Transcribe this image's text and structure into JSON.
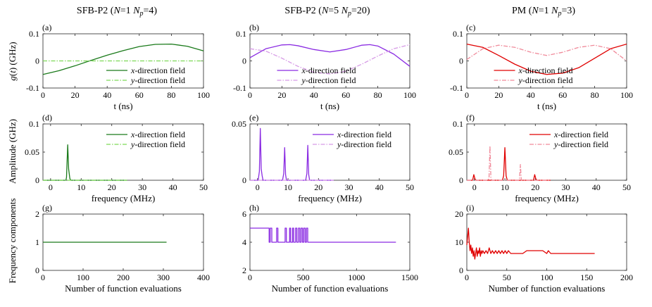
{
  "column_titles": [
    "SFB-P2 (N=1 Np=4)",
    "SFB-P2 (N=5 Np=20)",
    "PM (N=1 Np=3)"
  ],
  "chart_data": [
    {
      "panel": "a",
      "type": "line",
      "title": "SFB-P2 (N=1 Np=4)",
      "panel_label": "(a)",
      "xlabel": "t (ns)",
      "ylabel": "g(t) (GHz)",
      "xlim": [
        0,
        100
      ],
      "ylim": [
        -0.1,
        0.1
      ],
      "xticks": [
        "0",
        "20",
        "40",
        "60",
        "80",
        "100"
      ],
      "yticks": [
        "-0.1",
        "0",
        "0.1"
      ],
      "legend": "bottom-right",
      "series": [
        {
          "name": "x-direction field",
          "color": "#1a7a1a",
          "dash": "solid",
          "x": [
            0,
            10,
            20,
            30,
            40,
            50,
            60,
            70,
            80,
            90,
            100
          ],
          "y": [
            -0.05,
            -0.036,
            -0.018,
            0.002,
            0.021,
            0.038,
            0.053,
            0.061,
            0.062,
            0.054,
            0.037
          ]
        },
        {
          "name": "y-direction field",
          "color": "#7ed957",
          "dash": "dashdot",
          "x": [
            0,
            100
          ],
          "y": [
            0,
            0
          ]
        }
      ]
    },
    {
      "panel": "b",
      "type": "line",
      "panel_label": "(b)",
      "xlabel": "t (ns)",
      "xlim": [
        0,
        100
      ],
      "ylim": [
        -0.1,
        0.1
      ],
      "xticks": [
        "0",
        "20",
        "40",
        "60",
        "80",
        "100"
      ],
      "yticks": [
        "-0.1",
        "0",
        "0.1"
      ],
      "legend": "bottom-center",
      "series": [
        {
          "name": "x-direction field",
          "color": "#8a2be2",
          "dash": "solid",
          "x": [
            0,
            10,
            20,
            25,
            30,
            40,
            50,
            60,
            70,
            75,
            80,
            90,
            100
          ],
          "y": [
            0.012,
            0.045,
            0.059,
            0.06,
            0.056,
            0.042,
            0.033,
            0.042,
            0.058,
            0.06,
            0.055,
            0.025,
            -0.02
          ]
        },
        {
          "name": "y-direction field",
          "color": "#d69ae6",
          "dash": "dashdot",
          "x": [
            0,
            10,
            20,
            30,
            40,
            50,
            60,
            70,
            80,
            90,
            100
          ],
          "y": [
            0.045,
            0.036,
            0.01,
            -0.02,
            -0.042,
            -0.048,
            -0.038,
            -0.012,
            0.018,
            0.045,
            0.06
          ]
        }
      ]
    },
    {
      "panel": "c",
      "type": "line",
      "title": "PM (N=1 Np=3)",
      "panel_label": "(c)",
      "xlabel": "t (ns)",
      "xlim": [
        0,
        100
      ],
      "ylim": [
        -0.1,
        0.1
      ],
      "xticks": [
        "0",
        "20",
        "40",
        "60",
        "80",
        "100"
      ],
      "yticks": [
        "-0.1",
        "0",
        "0.1"
      ],
      "legend": "bottom-center",
      "series": [
        {
          "name": "x-direction field",
          "color": "#e00000",
          "dash": "solid",
          "x": [
            0,
            10,
            20,
            30,
            40,
            50,
            60,
            70,
            80,
            90,
            100
          ],
          "y": [
            0.062,
            0.05,
            0.02,
            -0.012,
            -0.038,
            -0.05,
            -0.045,
            -0.025,
            0.01,
            0.045,
            0.062
          ]
        },
        {
          "name": "y-direction field",
          "color": "#f08a9a",
          "dash": "dashdot",
          "x": [
            0,
            10,
            20,
            30,
            40,
            50,
            60,
            70,
            80,
            90,
            100
          ],
          "y": [
            0.005,
            0.045,
            0.058,
            0.05,
            0.032,
            0.02,
            0.032,
            0.05,
            0.058,
            0.045,
            0.0
          ]
        }
      ]
    },
    {
      "panel": "d",
      "type": "line",
      "panel_label": "(d)",
      "xlabel": "frequency (MHz)",
      "ylabel": "Amplitude (GHz)",
      "xlim": [
        -2.5,
        50
      ],
      "ylim": [
        0,
        0.1
      ],
      "xticks": [
        "0",
        "10",
        "20",
        "30",
        "40",
        "50"
      ],
      "yticks": [
        "0",
        "0.05",
        "0.1"
      ],
      "legend": "top-right",
      "series": [
        {
          "name": "x-direction field",
          "color": "#1a7a1a",
          "dash": "solid",
          "x": [
            -2.5,
            5.0,
            5.2,
            5.6,
            5.9,
            6.3,
            6.6,
            25
          ],
          "y": [
            0,
            0,
            0.005,
            0.063,
            0.02,
            0.003,
            0,
            0
          ]
        },
        {
          "name": "y-direction field",
          "color": "#7ed957",
          "dash": "dashdot",
          "x": [
            -2.5,
            25
          ],
          "y": [
            0,
            0
          ]
        }
      ]
    },
    {
      "panel": "e",
      "type": "line",
      "panel_label": "(e)",
      "xlabel": "frequency (MHz)",
      "xlim": [
        -2.5,
        50
      ],
      "ylim": [
        0,
        0.05
      ],
      "xticks": [
        "0",
        "10",
        "20",
        "30",
        "40",
        "50"
      ],
      "yticks": [
        "0",
        "0.05"
      ],
      "legend": "top-right",
      "series": [
        {
          "name": "x-direction field",
          "color": "#8a2be2",
          "dash": "solid",
          "x": [
            -2.5,
            0.2,
            0.6,
            0.9,
            1.2,
            1.5,
            1.8,
            8.2,
            8.6,
            8.9,
            9.2,
            9.5,
            15.8,
            16.2,
            16.5,
            16.8,
            17.1,
            25
          ],
          "y": [
            0,
            0,
            0.008,
            0.046,
            0.01,
            0.004,
            0,
            0,
            0.006,
            0.029,
            0.005,
            0,
            0,
            0.006,
            0.031,
            0.005,
            0,
            0
          ]
        },
        {
          "name": "y-direction field",
          "color": "#d69ae6",
          "dash": "dashdot",
          "x": [
            -2.5,
            25
          ],
          "y": [
            0,
            0
          ]
        }
      ]
    },
    {
      "panel": "f",
      "type": "line",
      "panel_label": "(f)",
      "xlabel": "frequency (MHz)",
      "xlim": [
        -2.5,
        50
      ],
      "ylim": [
        0,
        0.1
      ],
      "xticks": [
        "0",
        "10",
        "20",
        "30",
        "40",
        "50"
      ],
      "yticks": [
        "0",
        "0.05",
        "0.1"
      ],
      "legend": "top-right",
      "series": [
        {
          "name": "x-direction field",
          "color": "#e00000",
          "dash": "solid",
          "x": [
            -2.5,
            -0.6,
            -0.2,
            0.2,
            0.6,
            9.2,
            9.6,
            10.0,
            10.4,
            10.8,
            19.4,
            19.8,
            20.2,
            20.6,
            25
          ],
          "y": [
            0,
            0,
            0.01,
            0.002,
            0,
            0,
            0.008,
            0.058,
            0.008,
            0,
            0,
            0.01,
            0.002,
            0,
            0
          ]
        },
        {
          "name": "y-direction field",
          "color": "#f08a9a",
          "dash": "dashdot",
          "x": [
            -2.5,
            4.5,
            4.8,
            5.1,
            5.4,
            5.7,
            14.5,
            14.8,
            15.1,
            15.4,
            25
          ],
          "y": [
            0,
            0,
            0.005,
            0.061,
            0.005,
            0,
            0,
            0.003,
            0.028,
            0,
            0
          ]
        }
      ]
    },
    {
      "panel": "g",
      "type": "line",
      "panel_label": "(g)",
      "xlabel": "Number of function evaluations",
      "ylabel": "Frequency components",
      "xlim": [
        0,
        400
      ],
      "ylim": [
        0,
        2
      ],
      "xticks": [
        "0",
        "100",
        "200",
        "300",
        "400"
      ],
      "yticks": [
        "0",
        "1",
        "2"
      ],
      "series": [
        {
          "name": "",
          "color": "#1a7a1a",
          "dash": "solid",
          "x": [
            0,
            308
          ],
          "y": [
            1,
            1
          ]
        }
      ]
    },
    {
      "panel": "h",
      "type": "line",
      "panel_label": "(h)",
      "xlabel": "Number of function evaluations",
      "xlim": [
        0,
        1500
      ],
      "ylim": [
        2,
        6
      ],
      "xticks": [
        "0",
        "500",
        "1000",
        "1500"
      ],
      "yticks": [
        "2",
        "4",
        "6"
      ],
      "series": [
        {
          "name": "",
          "color": "#8a2be2",
          "dash": "solid",
          "x": [
            0,
            180,
            180,
            190,
            190,
            205,
            205,
            250,
            250,
            262,
            262,
            330,
            330,
            342,
            342,
            372,
            372,
            382,
            382,
            400,
            400,
            410,
            410,
            428,
            428,
            440,
            440,
            455,
            455,
            468,
            468,
            480,
            480,
            493,
            493,
            505,
            505,
            518,
            518,
            530,
            530,
            542,
            542,
            1370
          ],
          "y": [
            5,
            5,
            4,
            4,
            5,
            5,
            4,
            4,
            5,
            5,
            4,
            4,
            5,
            5,
            4,
            4,
            5,
            5,
            4,
            4,
            5,
            5,
            4,
            4,
            5,
            5,
            4,
            4,
            5,
            5,
            4,
            4,
            5,
            5,
            4,
            4,
            5,
            5,
            4,
            4,
            5,
            5,
            4,
            4
          ]
        }
      ]
    },
    {
      "panel": "i",
      "type": "line",
      "panel_label": "(i)",
      "xlabel": "Number of function evaluations",
      "xlim": [
        0,
        200
      ],
      "ylim": [
        0,
        20
      ],
      "xticks": [
        "0",
        "50",
        "100",
        "150",
        "200"
      ],
      "yticks": [
        "0",
        "10",
        "20"
      ],
      "series": [
        {
          "name": "",
          "color": "#e00000",
          "dash": "solid",
          "x": [
            0,
            1,
            2,
            3,
            4,
            5,
            6,
            7,
            8,
            9,
            10,
            11,
            12,
            13,
            14,
            15,
            16,
            17,
            18,
            19,
            20,
            22,
            24,
            26,
            28,
            30,
            32,
            34,
            36,
            38,
            40,
            42,
            44,
            46,
            48,
            50,
            52,
            55,
            60,
            70,
            75,
            80,
            95,
            100,
            102,
            105,
            110,
            160
          ],
          "y": [
            9,
            12,
            15,
            10,
            7,
            9,
            6,
            8,
            5,
            7,
            4,
            6,
            8,
            5,
            7,
            6,
            8,
            5,
            7,
            6,
            7,
            6,
            7,
            6,
            8,
            6,
            7,
            6,
            7,
            6,
            7,
            6,
            7,
            6,
            7,
            6,
            7,
            6,
            6,
            6,
            7,
            7,
            7,
            6,
            7,
            6,
            6,
            6
          ]
        }
      ]
    }
  ]
}
